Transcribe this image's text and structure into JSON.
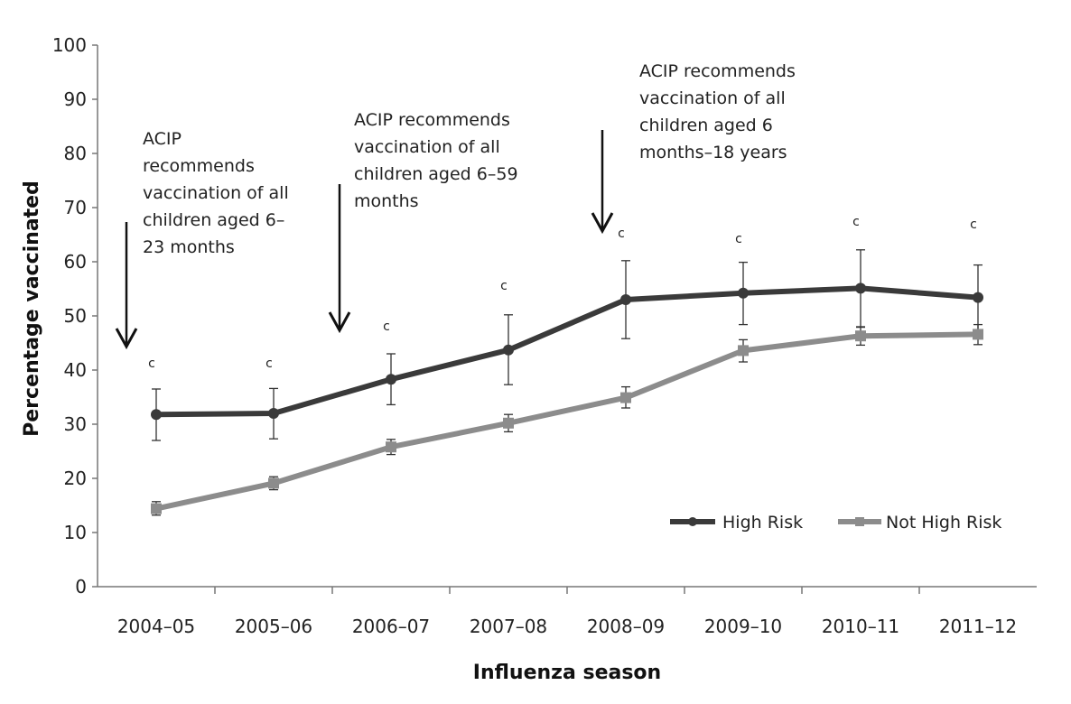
{
  "chart_data": {
    "type": "line",
    "xlabel": "Influenza season",
    "ylabel": "Percentage vaccinated",
    "ylim": [
      0,
      100
    ],
    "yticks": [
      "0",
      "10",
      "20",
      "30",
      "40",
      "50",
      "60",
      "70",
      "80",
      "90",
      "100"
    ],
    "categories": [
      "2004–05",
      "2005–06",
      "2006–07",
      "2007–08",
      "2008–09",
      "2009–10",
      "2010–11",
      "2011–12"
    ],
    "grid": false,
    "legend_position": "bottom-right",
    "series": [
      {
        "name": "High Risk",
        "color": "#3a3a3a",
        "marker": "circle",
        "values": [
          31.8,
          32.0,
          38.3,
          43.7,
          53.0,
          54.2,
          55.1,
          53.4
        ],
        "err_low": [
          27.0,
          27.3,
          33.6,
          37.3,
          45.8,
          48.4,
          47.9,
          47.4
        ],
        "err_high": [
          36.5,
          36.6,
          43.0,
          50.2,
          60.2,
          59.9,
          62.2,
          59.4
        ]
      },
      {
        "name": "Not High Risk",
        "color": "#8c8c8c",
        "marker": "square",
        "values": [
          14.4,
          19.1,
          25.8,
          30.2,
          34.9,
          43.6,
          46.3,
          46.6
        ],
        "err_low": [
          13.2,
          17.9,
          24.4,
          28.6,
          33.0,
          41.5,
          44.6,
          44.7
        ],
        "err_high": [
          15.7,
          20.3,
          27.2,
          31.8,
          36.9,
          45.6,
          48.0,
          48.4
        ]
      }
    ],
    "significance_marks": [
      {
        "label": "c",
        "category_index": 0,
        "y": 40.5
      },
      {
        "label": "c",
        "category_index": 1,
        "y": 40.5
      },
      {
        "label": "c",
        "category_index": 2,
        "y": 47.3
      },
      {
        "label": "c",
        "category_index": 3,
        "y": 54.8
      },
      {
        "label": "c",
        "category_index": 4,
        "y": 64.5
      },
      {
        "label": "c",
        "category_index": 5,
        "y": 63.5
      },
      {
        "label": "c",
        "category_index": 6,
        "y": 66.7
      },
      {
        "label": "c",
        "category_index": 7,
        "y": 66.2
      }
    ],
    "annotations": [
      {
        "lines": [
          "ACIP",
          "recommends",
          "vaccination of all",
          "children aged 6–",
          "23 months"
        ],
        "arrow_x": 0.0
      },
      {
        "lines": [
          "ACIP recommends",
          "vaccination of all",
          "children aged 6–59",
          "months"
        ],
        "arrow_x": 1.5
      },
      {
        "lines": [
          "ACIP recommends",
          "vaccination of all",
          "children aged 6",
          "months–18 years"
        ],
        "arrow_x": 3.95
      }
    ]
  }
}
